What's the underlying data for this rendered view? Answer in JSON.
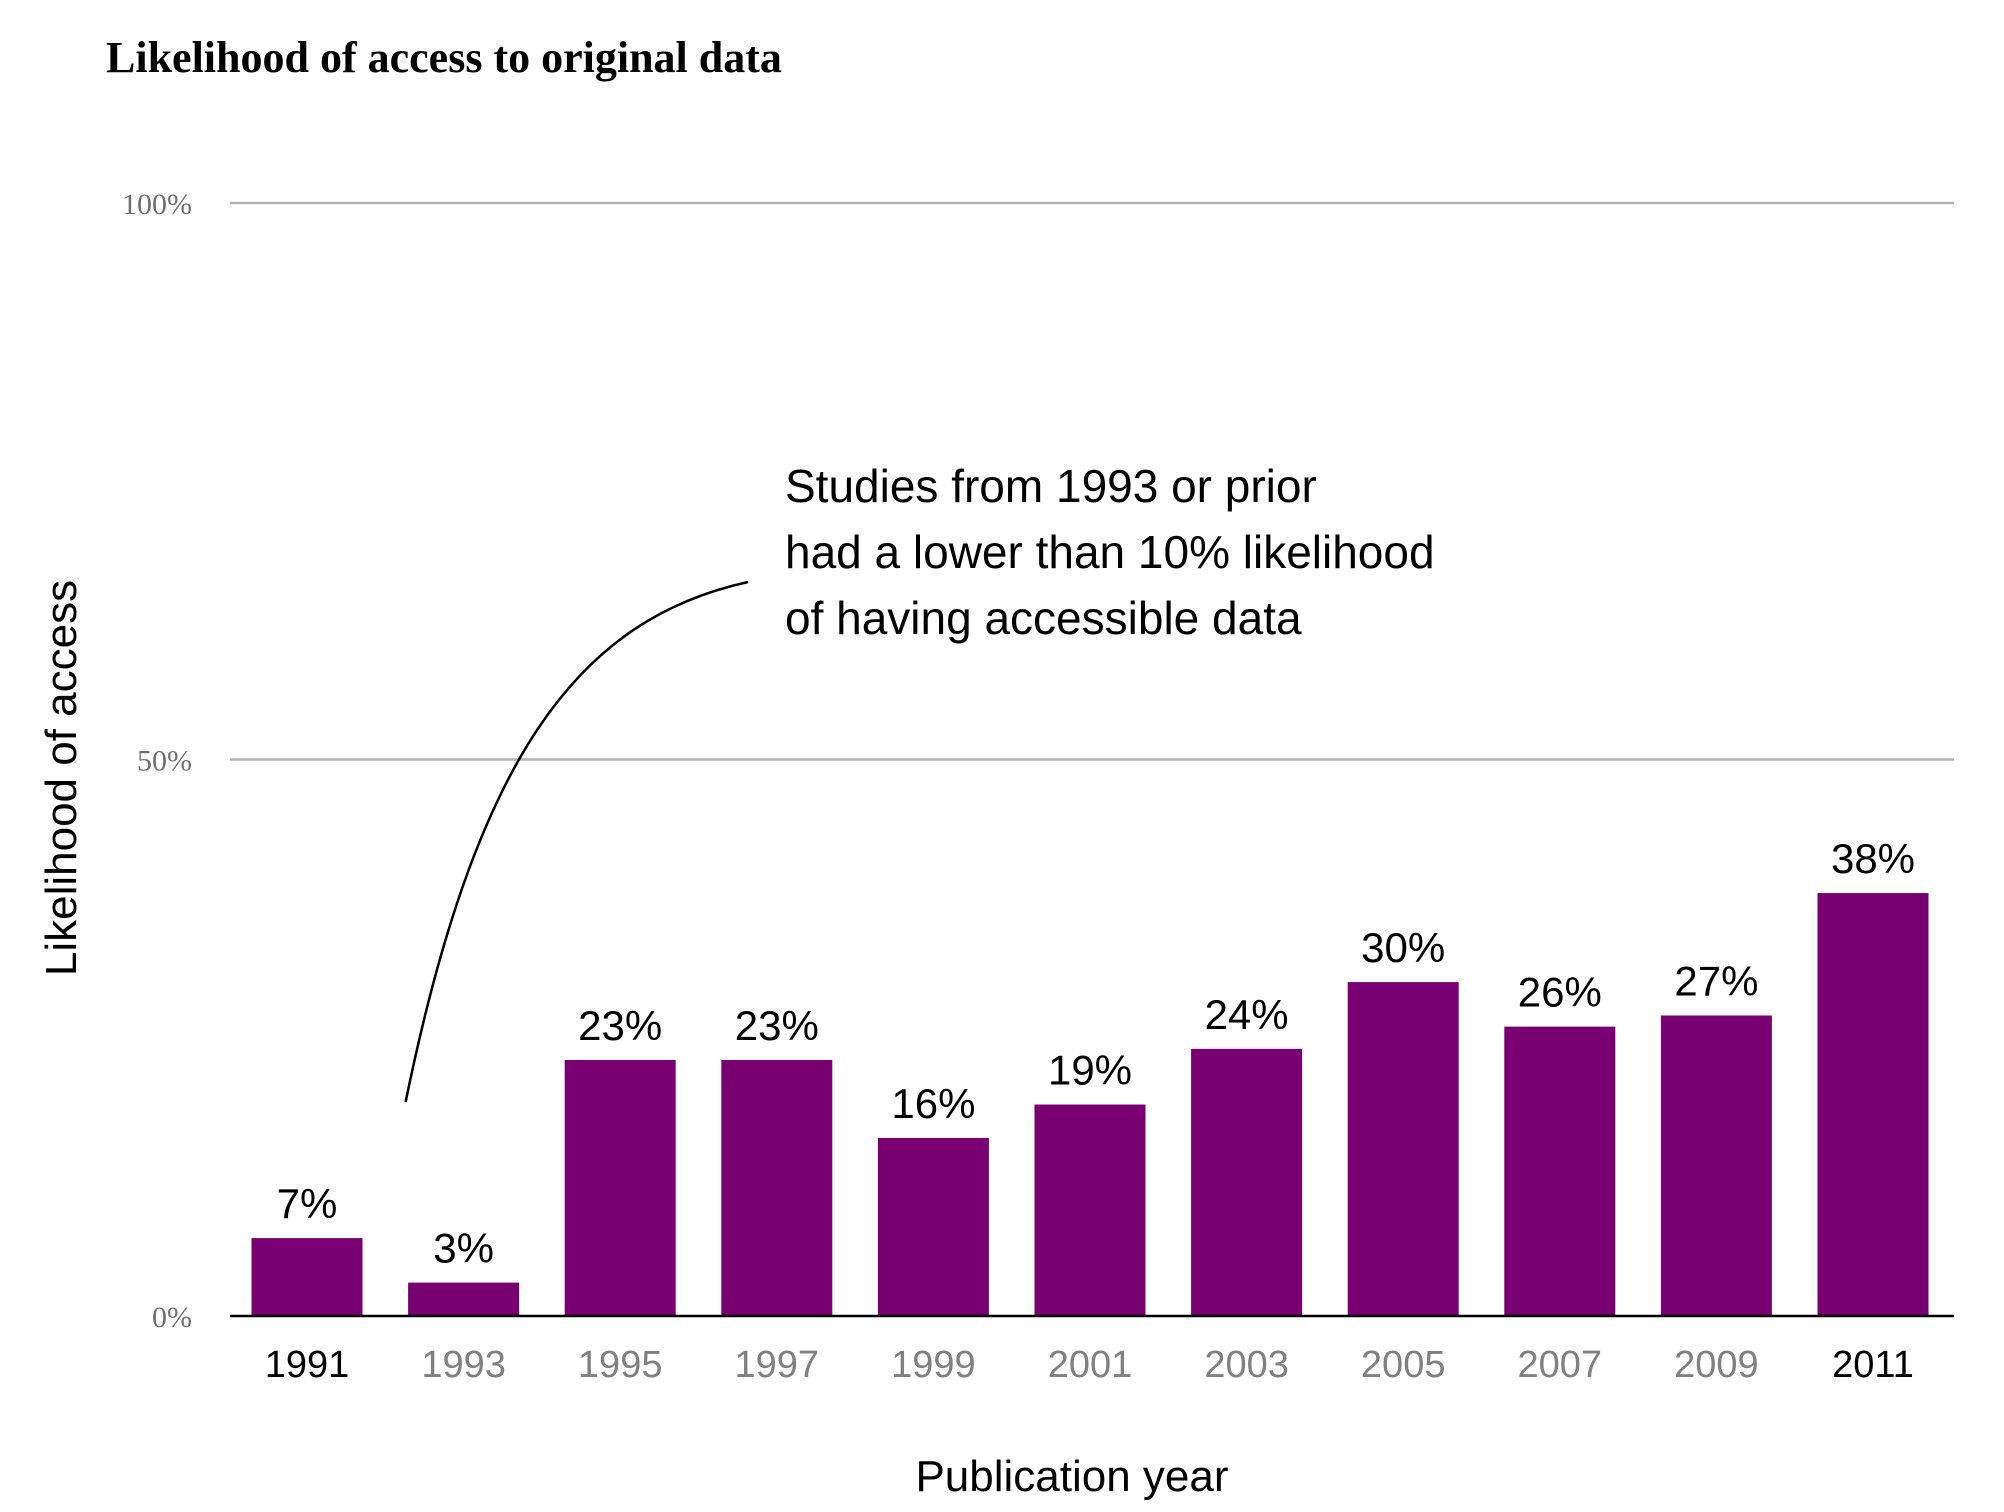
{
  "chart_data": {
    "type": "bar",
    "title": "Likelihood of access to original data",
    "xlabel": "Publication year",
    "ylabel": "Likelihood of access",
    "ylim": [
      0,
      100
    ],
    "y_ticks": [
      {
        "value": 0,
        "label": "0%"
      },
      {
        "value": 50,
        "label": "50%"
      },
      {
        "value": 100,
        "label": "100%"
      }
    ],
    "grid": true,
    "categories": [
      "1991",
      "1993",
      "1995",
      "1997",
      "1999",
      "2001",
      "2003",
      "2005",
      "2007",
      "2009",
      "2011"
    ],
    "values": [
      7,
      3,
      23,
      23,
      16,
      19,
      24,
      30,
      26,
      27,
      38
    ],
    "value_labels": [
      "7%",
      "3%",
      "23%",
      "23%",
      "16%",
      "19%",
      "24%",
      "30%",
      "26%",
      "27%",
      "38%"
    ],
    "highlighted_categories": [
      "1991",
      "2011"
    ],
    "annotation": {
      "lines": [
        "Studies from 1993 or prior",
        "had a lower than 10% likelihood",
        "of having accessible data"
      ],
      "points_to": "1993"
    },
    "colors": {
      "bar": "#780070",
      "gridline": "#b3b3b3",
      "axis": "#000000",
      "tick_label_muted": "#808080",
      "tick_label_emphasis": "#000000",
      "ytick_label": "#707070"
    }
  }
}
